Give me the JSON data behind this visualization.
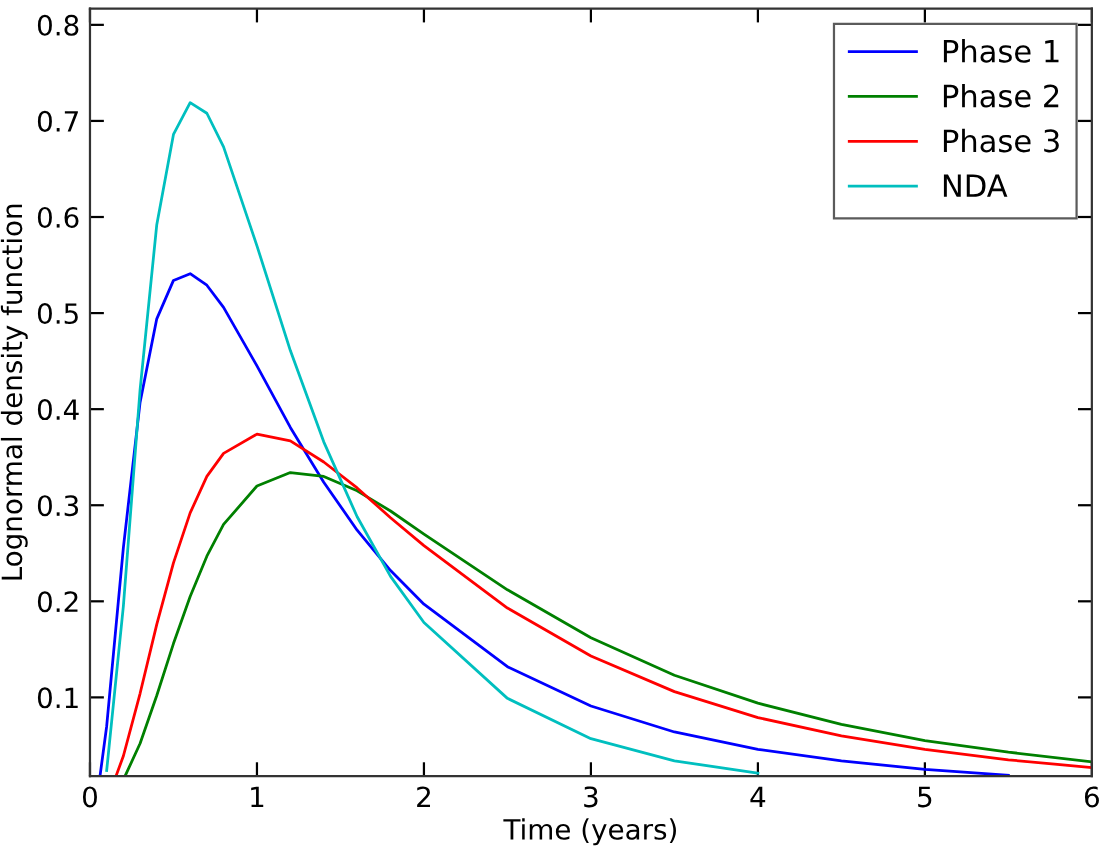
{
  "chart_data": {
    "type": "line",
    "xlabel": "Time (years)",
    "ylabel": "Lognormal density function",
    "xlim": [
      0,
      6
    ],
    "xticks": [
      0,
      1,
      2,
      3,
      4,
      5,
      6
    ],
    "ylim": [
      0.018,
      0.817
    ],
    "yticks": [
      0.1,
      0.2,
      0.3,
      0.4,
      0.5,
      0.6,
      0.7,
      0.8
    ],
    "grid": false,
    "legend": "top right",
    "marker": "none",
    "line_style": "solid",
    "series": [
      {
        "name": "Phase 1",
        "color": "#0000ff",
        "x": [
          0.06,
          0.1,
          0.2,
          0.3,
          0.4,
          0.5,
          0.6,
          0.7,
          0.8,
          1.0,
          1.2,
          1.4,
          1.6,
          1.8,
          2.0,
          2.5,
          3.0,
          3.5,
          4.0,
          4.5,
          5.0,
          5.5
        ],
        "values": [
          0.018,
          0.07,
          0.256,
          0.407,
          0.494,
          0.534,
          0.541,
          0.529,
          0.506,
          0.445,
          0.381,
          0.324,
          0.274,
          0.232,
          0.197,
          0.132,
          0.091,
          0.064,
          0.046,
          0.034,
          0.025,
          0.019
        ]
      },
      {
        "name": "Phase 2",
        "color": "#008000",
        "x": [
          0.21,
          0.3,
          0.4,
          0.5,
          0.6,
          0.7,
          0.8,
          1.0,
          1.2,
          1.4,
          1.6,
          1.8,
          2.0,
          2.5,
          3.0,
          3.5,
          4.0,
          4.5,
          5.0,
          5.5,
          6.0
        ],
        "values": [
          0.018,
          0.052,
          0.102,
          0.156,
          0.205,
          0.247,
          0.28,
          0.32,
          0.334,
          0.33,
          0.315,
          0.294,
          0.27,
          0.212,
          0.162,
          0.123,
          0.094,
          0.072,
          0.055,
          0.043,
          0.033
        ]
      },
      {
        "name": "Phase 3",
        "color": "#ff0000",
        "x": [
          0.16,
          0.2,
          0.3,
          0.4,
          0.5,
          0.6,
          0.7,
          0.8,
          1.0,
          1.2,
          1.4,
          1.6,
          1.8,
          2.0,
          2.5,
          3.0,
          3.5,
          4.0,
          4.5,
          5.0,
          5.5,
          6.0
        ],
        "values": [
          0.02,
          0.039,
          0.104,
          0.176,
          0.24,
          0.292,
          0.33,
          0.354,
          0.374,
          0.367,
          0.345,
          0.318,
          0.287,
          0.258,
          0.193,
          0.143,
          0.106,
          0.079,
          0.06,
          0.046,
          0.035,
          0.027
        ]
      },
      {
        "name": "NDA",
        "color": "#00bfbf",
        "x": [
          0.1,
          0.2,
          0.3,
          0.4,
          0.5,
          0.6,
          0.7,
          0.8,
          1.0,
          1.2,
          1.4,
          1.6,
          1.8,
          2.0,
          2.5,
          3.0,
          3.5,
          4.0
        ],
        "values": [
          0.024,
          0.195,
          0.42,
          0.592,
          0.686,
          0.719,
          0.708,
          0.673,
          0.57,
          0.461,
          0.366,
          0.288,
          0.226,
          0.178,
          0.099,
          0.057,
          0.034,
          0.021
        ]
      }
    ]
  }
}
